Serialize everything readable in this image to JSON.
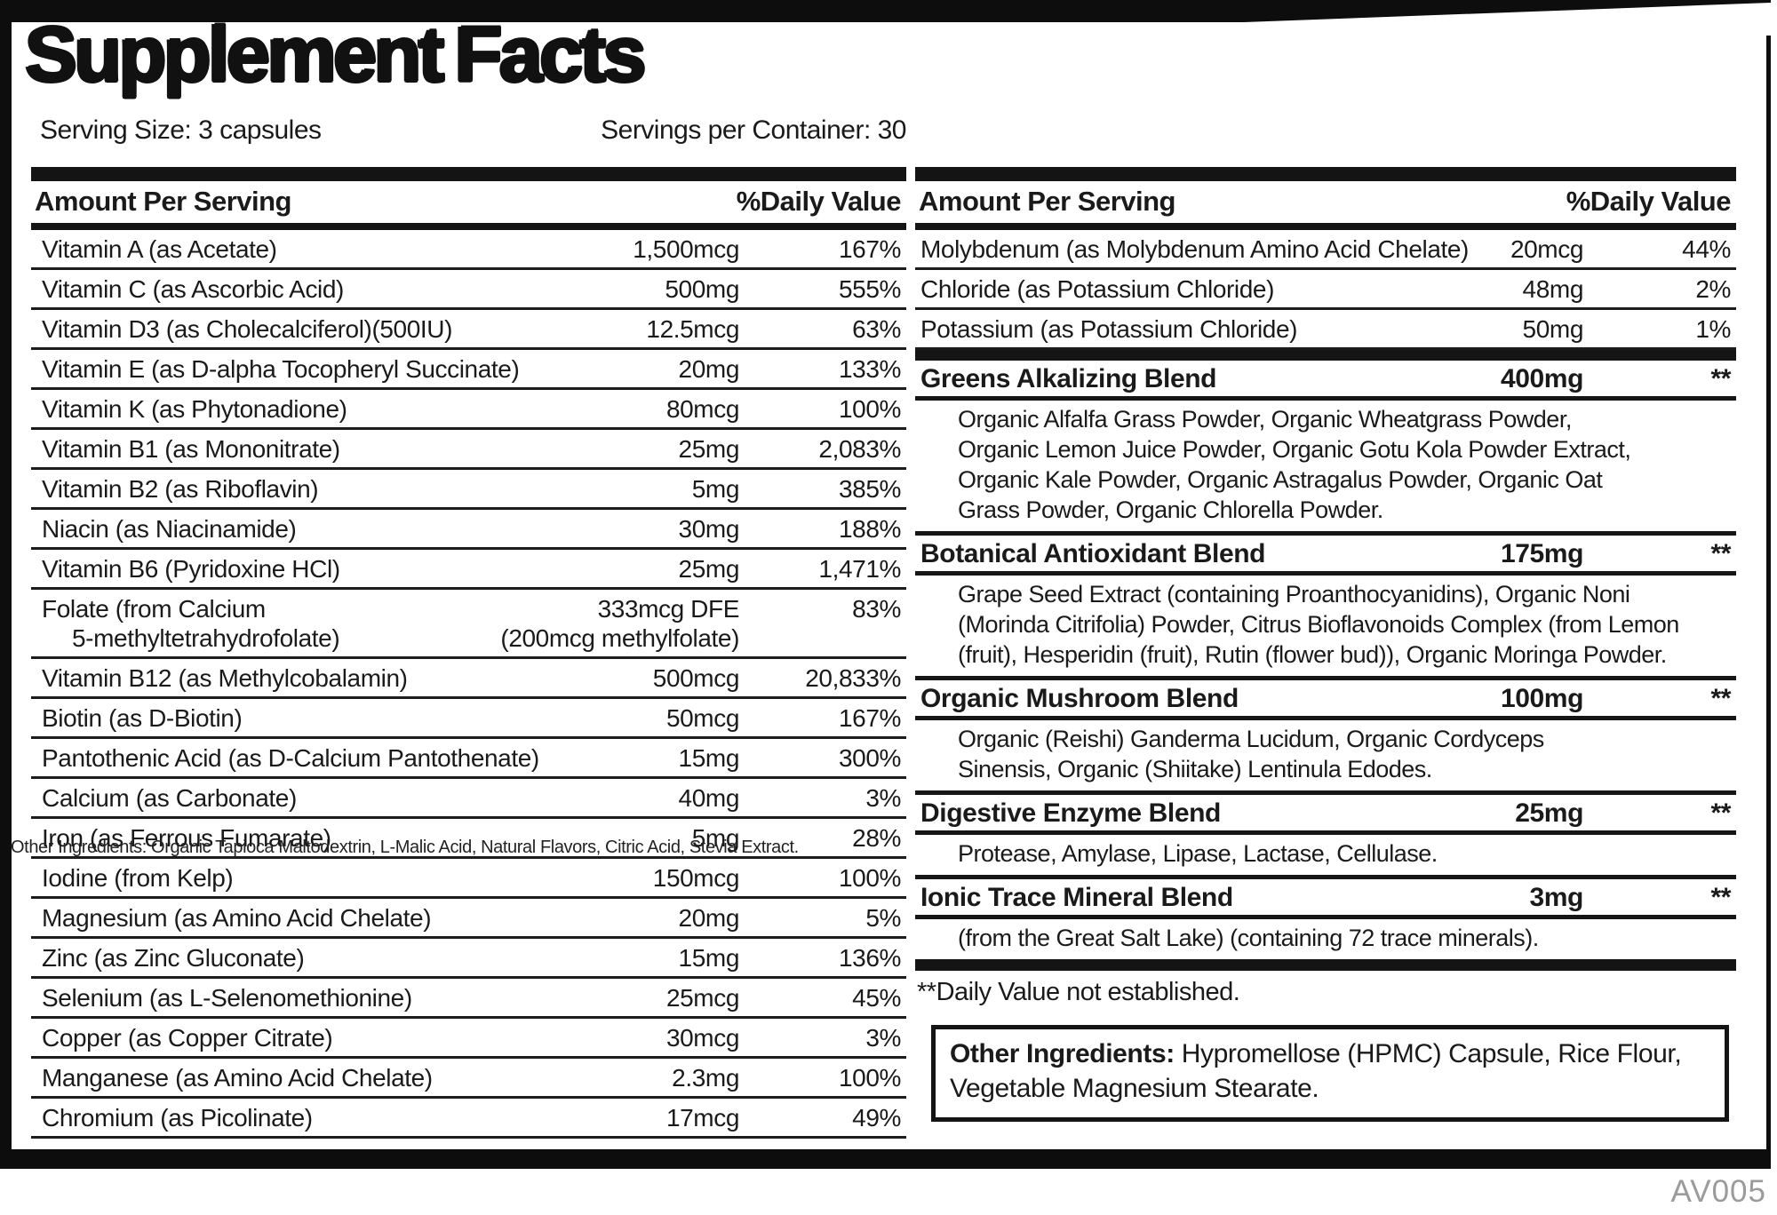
{
  "header": {
    "title": "Supplement Facts",
    "serving_size": "Serving Size: 3 capsules",
    "servings_per_container": "Servings per Container: 30"
  },
  "table_headers": {
    "amount": "Amount Per Serving",
    "daily_value": "%Daily Value"
  },
  "left_table": {
    "rows": [
      {
        "name": "Vitamin A (as Acetate)",
        "amount": "1,500mcg",
        "dv": "167%"
      },
      {
        "name": "Vitamin C (as Ascorbic Acid)",
        "amount": "500mg",
        "dv": "555%"
      },
      {
        "name": "Vitamin D3 (as Cholecalciferol)(500IU)",
        "amount": "12.5mcg",
        "dv": "63%"
      },
      {
        "name": "Vitamin E (as D-alpha Tocopheryl Succinate)",
        "amount": "20mg",
        "dv": "133%"
      },
      {
        "name": "Vitamin K (as Phytonadione)",
        "amount": "80mcg",
        "dv": "100%"
      },
      {
        "name": "Vitamin B1 (as Mononitrate)",
        "amount": "25mg",
        "dv": "2,083%"
      },
      {
        "name": "Vitamin B2 (as Riboflavin)",
        "amount": "5mg",
        "dv": "385%"
      },
      {
        "name": "Niacin (as Niacinamide)",
        "amount": "30mg",
        "dv": "188%"
      },
      {
        "name": "Vitamin B6 (Pyridoxine HCl)",
        "amount": "25mg",
        "dv": "1,471%"
      },
      {
        "name": "Folate (from Calcium",
        "name2": "5-methyltetrahydrofolate)",
        "amount": "333mcg DFE",
        "amount2": "(200mcg methylfolate)",
        "dv": "83%"
      },
      {
        "name": "Vitamin B12 (as Methylcobalamin)",
        "amount": "500mcg",
        "dv": "20,833%"
      },
      {
        "name": "Biotin (as D-Biotin)",
        "amount": "50mcg",
        "dv": "167%"
      },
      {
        "name": "Pantothenic Acid (as D-Calcium Pantothenate)",
        "amount": "15mg",
        "dv": "300%"
      },
      {
        "name": "Calcium (as Carbonate)",
        "amount": "40mg",
        "dv": "3%"
      },
      {
        "name": "Iron (as Ferrous Fumarate)",
        "amount": "5mg",
        "dv": "28%"
      },
      {
        "name": "Iodine (from Kelp)",
        "amount": "150mcg",
        "dv": "100%"
      },
      {
        "name": "Magnesium (as Amino Acid Chelate)",
        "amount": "20mg",
        "dv": "5%"
      },
      {
        "name": "Zinc (as Zinc Gluconate)",
        "amount": "15mg",
        "dv": "136%"
      },
      {
        "name": "Selenium (as L-Selenomethionine)",
        "amount": "25mcg",
        "dv": "45%"
      },
      {
        "name": "Copper (as Copper Citrate)",
        "amount": "30mcg",
        "dv": "3%"
      },
      {
        "name": "Manganese (as Amino Acid Chelate)",
        "amount": "2.3mg",
        "dv": "100%"
      },
      {
        "name": "Chromium (as Picolinate)",
        "amount": "17mcg",
        "dv": "49%"
      }
    ]
  },
  "overlay_text": "Other Ingredients: Organic Tapioca Maltodextrin, L-Malic Acid, Natural Flavors, Citric Acid, Stevia Extract.",
  "right_table": {
    "rows": [
      {
        "name": "Molybdenum (as Molybdenum Amino Acid Chelate)",
        "amount": "20mcg",
        "dv": "44%"
      },
      {
        "name": "Chloride (as Potassium Chloride)",
        "amount": "48mg",
        "dv": "2%"
      },
      {
        "name": "Potassium (as Potassium Chloride)",
        "amount": "50mg",
        "dv": "1%"
      }
    ],
    "blends": [
      {
        "name": "Greens Alkalizing Blend",
        "amount": "400mg",
        "dv": "**",
        "description_lines": [
          "Organic Alfalfa Grass Powder, Organic Wheatgrass Powder,",
          "Organic Lemon Juice Powder, Organic Gotu Kola Powder Extract,",
          "Organic Kale Powder, Organic Astragalus Powder, Organic Oat",
          "Grass Powder, Organic Chlorella Powder."
        ]
      },
      {
        "name": "Botanical Antioxidant Blend",
        "amount": "175mg",
        "dv": "**",
        "description_lines": [
          "Grape Seed Extract (containing Proanthocyanidins), Organic Noni",
          "(Morinda Citrifolia) Powder, Citrus Bioflavonoids Complex (from Lemon",
          "(fruit), Hesperidin (fruit), Rutin (flower bud)), Organic Moringa Powder."
        ]
      },
      {
        "name": "Organic Mushroom Blend",
        "amount": "100mg",
        "dv": "**",
        "description_lines": [
          "Organic (Reishi) Ganderma Lucidum, Organic Cordyceps",
          "Sinensis, Organic (Shiitake) Lentinula Edodes."
        ]
      },
      {
        "name": "Digestive Enzyme Blend",
        "amount": "25mg",
        "dv": "**",
        "description_lines": [
          "Protease, Amylase, Lipase, Lactase, Cellulase."
        ]
      },
      {
        "name": "Ionic Trace Mineral Blend",
        "amount": "3mg",
        "dv": "**",
        "description_lines": [
          "(from the Great Salt Lake) (containing 72 trace minerals)."
        ]
      }
    ]
  },
  "footnote": "**Daily Value not established.",
  "other_ingredients": {
    "label": "Other Ingredients:",
    "text": " Hypromellose (HPMC) Capsule, Rice Flour, Vegetable Magnesium Stearate."
  },
  "footer_code": "AV005",
  "colors": {
    "ink": "#1a1a1a",
    "muted": "#9b9b9b",
    "background": "#ffffff"
  }
}
